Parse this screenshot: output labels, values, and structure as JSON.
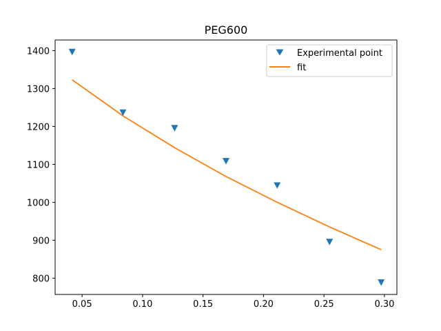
{
  "chart_data": {
    "type": "line",
    "title": "PEG600",
    "xlabel": "",
    "ylabel": "",
    "xlim": [
      0.0277,
      0.3103
    ],
    "ylim": [
      757,
      1428
    ],
    "xticks": [
      0.05,
      0.1,
      0.15,
      0.2,
      0.25,
      0.3
    ],
    "xtick_labels": [
      "0.05",
      "0.10",
      "0.15",
      "0.20",
      "0.25",
      "0.30"
    ],
    "yticks": [
      800,
      900,
      1000,
      1100,
      1200,
      1300,
      1400
    ],
    "ytick_labels": [
      "800",
      "900",
      "1000",
      "1100",
      "1200",
      "1300",
      "1400"
    ],
    "grid": false,
    "legend_position": "top-right",
    "series": [
      {
        "name": "Experimental point",
        "kind": "scatter",
        "marker": "triangle-down",
        "color": "#1f77b4",
        "x": [
          0.0418,
          0.0838,
          0.1265,
          0.169,
          0.2113,
          0.2546,
          0.2973
        ],
        "y": [
          1397,
          1237,
          1196,
          1109,
          1045,
          896,
          789
        ]
      },
      {
        "name": "fit",
        "kind": "line",
        "color": "#ff7f0e",
        "x": [
          0.0418,
          0.0838,
          0.1265,
          0.169,
          0.2113,
          0.2546,
          0.2973
        ],
        "y": [
          1323,
          1228,
          1144,
          1068,
          1000,
          935,
          875
        ]
      }
    ]
  }
}
